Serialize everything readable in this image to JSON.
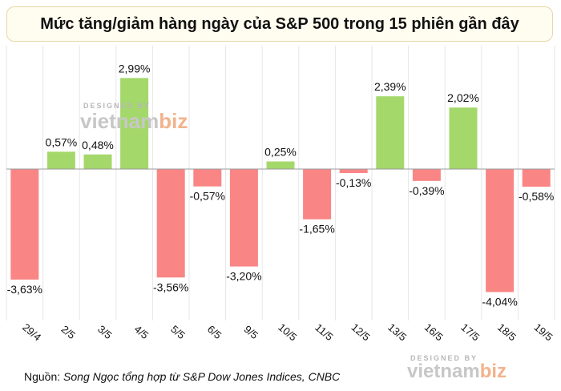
{
  "title": "Mức tăng/giảm hàng ngày của S&P 500 trong 15 phiên gần đây",
  "source_label": "Nguồn:",
  "source_text": "Song Ngọc tổng hợp từ S&P Dow Jones Indices, CNBC",
  "watermark": {
    "small": "DESIGNED BY",
    "brand_a": "vietnam",
    "brand_b": "biz"
  },
  "colors": {
    "positive": "#a4d86b",
    "negative": "#f98585",
    "axis": "#9a9a9a"
  },
  "chart_data": {
    "type": "bar",
    "categories": [
      "29/4",
      "2/5",
      "3/5",
      "4/5",
      "5/5",
      "6/5",
      "9/5",
      "10/5",
      "11/5",
      "12/5",
      "13/5",
      "16/5",
      "17/5",
      "18/5",
      "19/5"
    ],
    "values": [
      -3.63,
      0.57,
      0.48,
      2.99,
      -3.56,
      -0.57,
      -3.2,
      0.25,
      -1.65,
      -0.13,
      2.39,
      -0.39,
      2.02,
      -4.04,
      -0.58
    ],
    "labels": [
      "-3,63%",
      "0,57%",
      "0,48%",
      "2,99%",
      "-3,56%",
      "-0,57%",
      "-3,20%",
      "0,25%",
      "-1,65%",
      "-0,13%",
      "2,39%",
      "-0,39%",
      "2,02%",
      "-4,04%",
      "-0,58%"
    ],
    "title": "Mức tăng/giảm hàng ngày của S&P 500 trong 15 phiên gần đây",
    "xlabel": "",
    "ylabel": "",
    "ylim": [
      -4.5,
      3.3
    ],
    "grid": "vertical"
  }
}
